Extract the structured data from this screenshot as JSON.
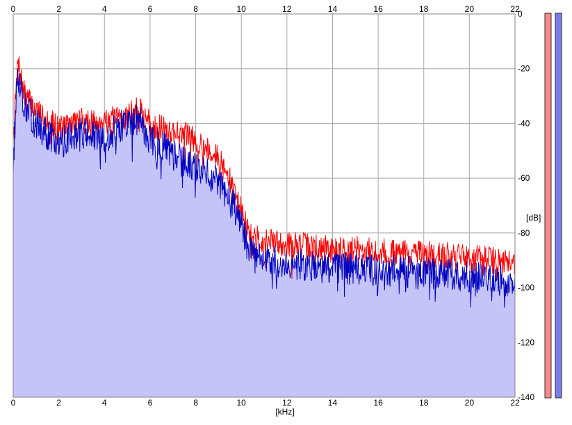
{
  "chart_data": {
    "type": "area",
    "title": "",
    "xlabel": "[kHz]",
    "ylabel": "[dB]",
    "xlim": [
      0,
      22
    ],
    "ylim": [
      -140,
      0
    ],
    "x_ticks": [
      "0",
      "2",
      "4",
      "6",
      "8",
      "10",
      "12",
      "14",
      "16",
      "18",
      "20",
      "22"
    ],
    "y_ticks": [
      "0",
      "-20",
      "-40",
      "-60",
      "-80",
      "-100",
      "-120",
      "-140"
    ],
    "grid": true,
    "legend": "none",
    "series": [
      {
        "color": "#ff0000",
        "x": [
          0,
          0.2,
          0.5,
          1,
          1.5,
          2,
          2.5,
          3,
          3.5,
          4,
          4.5,
          5,
          5.5,
          6,
          6.5,
          7,
          7.5,
          8,
          8.5,
          9,
          9.5,
          10,
          10.3,
          10.6,
          11,
          12,
          13,
          14,
          15,
          16,
          17,
          18,
          19,
          20,
          21,
          22
        ],
        "values": [
          -45,
          -18,
          -30,
          -35,
          -38,
          -42,
          -40,
          -39,
          -40,
          -38,
          -39,
          -37,
          -35,
          -40,
          -42,
          -43,
          -44,
          -46,
          -49,
          -53,
          -61,
          -72,
          -80,
          -82,
          -83,
          -84,
          -85,
          -86,
          -86,
          -87,
          -87,
          -88,
          -88,
          -89,
          -90,
          -91
        ]
      },
      {
        "color": "#0000c0",
        "x": [
          0,
          0.2,
          0.5,
          1,
          1.5,
          2,
          2.5,
          3,
          3.5,
          4,
          4.5,
          5,
          5.5,
          6,
          6.5,
          7,
          7.5,
          8,
          8.5,
          9,
          9.5,
          10,
          10.3,
          10.6,
          11,
          12,
          13,
          14,
          15,
          16,
          17,
          18,
          19,
          20,
          21,
          22
        ],
        "values": [
          -55,
          -20,
          -34,
          -40,
          -44,
          -48,
          -44,
          -43,
          -45,
          -47,
          -42,
          -40,
          -38,
          -46,
          -48,
          -52,
          -54,
          -56,
          -58,
          -62,
          -67,
          -77,
          -85,
          -89,
          -90,
          -91,
          -92,
          -93,
          -93,
          -94,
          -94,
          -95,
          -95,
          -96,
          -97,
          -98
        ]
      }
    ],
    "fill_color": "#c4c4f8",
    "level_meters": [
      {
        "color": "#f88a8a",
        "level": 1.0
      },
      {
        "color": "#7a7aee",
        "level": 1.0
      }
    ]
  }
}
